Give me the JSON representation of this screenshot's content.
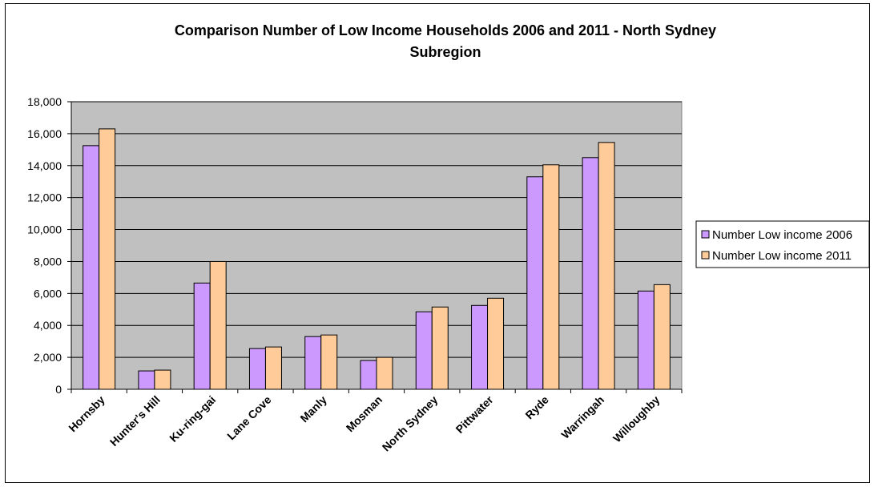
{
  "chart_data": {
    "type": "bar",
    "title_line1": "Comparison Number of Low Income Households 2006 and 2011 - North Sydney",
    "title_line2": "Subregion",
    "xlabel": "",
    "ylabel": "",
    "categories": [
      "Hornsby",
      "Hunter's Hill",
      "Ku-ring-gai",
      "Lane Cove",
      "Manly",
      "Mosman",
      "North Sydney",
      "Pittwater",
      "Ryde",
      "Warringah",
      "Willoughby"
    ],
    "series": [
      {
        "name": "Number Low income 2006",
        "color": "#cc99ff",
        "values": [
          15250,
          1150,
          6650,
          2550,
          3300,
          1800,
          4850,
          5250,
          13300,
          14500,
          6150
        ]
      },
      {
        "name": "Number Low income 2011",
        "color": "#ffcc99",
        "values": [
          16300,
          1200,
          8000,
          2650,
          3400,
          2000,
          5150,
          5700,
          14050,
          15450,
          6550
        ]
      }
    ],
    "ylim": [
      0,
      18000
    ],
    "yticks": [
      "0",
      "2,000",
      "4,000",
      "6,000",
      "8,000",
      "10,000",
      "12,000",
      "14,000",
      "16,000",
      "18,000"
    ],
    "ytick_values": [
      0,
      2000,
      4000,
      6000,
      8000,
      10000,
      12000,
      14000,
      16000,
      18000
    ],
    "grid": true,
    "plot_background": "#c0c0c0",
    "legend_position": "right"
  }
}
